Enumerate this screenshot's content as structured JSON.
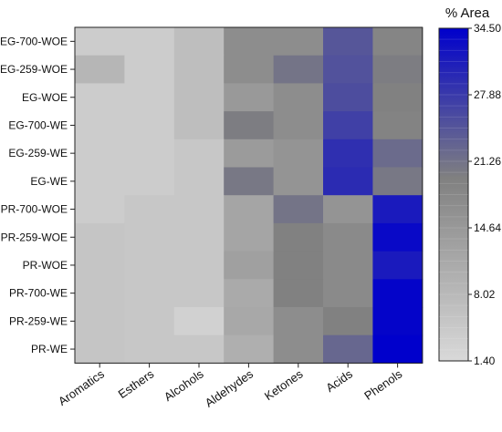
{
  "chart_data": {
    "type": "heatmap",
    "title": "",
    "xlabel": "",
    "ylabel": "",
    "rows": [
      "EG-700-WOE",
      "EG-259-WOE",
      "EG-WOE",
      "EG-700-WE",
      "EG-259-WE",
      "EG-WE",
      "PR-700-WOE",
      "PR-259-WOE",
      "PR-WOE",
      "PR-700-WE",
      "PR-259-WE",
      "PR-WE"
    ],
    "columns": [
      "Aromatics",
      "Esthers",
      "Alcohols",
      "Aldehydes",
      "Ketones",
      "Acids",
      "Phenols"
    ],
    "values": [
      [
        4.0,
        4.0,
        7.0,
        17.0,
        17.0,
        24.5,
        18.5
      ],
      [
        8.5,
        4.0,
        7.0,
        17.0,
        21.0,
        25.0,
        20.0
      ],
      [
        4.0,
        4.0,
        7.0,
        14.5,
        17.0,
        25.5,
        19.5
      ],
      [
        4.0,
        4.0,
        7.0,
        20.0,
        17.0,
        27.0,
        19.0
      ],
      [
        4.0,
        4.0,
        5.0,
        14.0,
        15.5,
        29.0,
        22.0
      ],
      [
        4.0,
        4.0,
        5.0,
        20.5,
        15.5,
        29.5,
        20.5
      ],
      [
        4.0,
        5.0,
        5.0,
        12.0,
        21.0,
        15.5,
        31.5
      ],
      [
        5.5,
        5.0,
        5.0,
        12.0,
        19.5,
        17.5,
        33.5
      ],
      [
        5.5,
        5.0,
        5.0,
        13.0,
        19.5,
        17.5,
        31.5
      ],
      [
        5.5,
        5.0,
        5.0,
        11.0,
        19.5,
        17.5,
        34.0
      ],
      [
        5.5,
        5.0,
        3.0,
        11.5,
        17.0,
        19.5,
        34.0
      ],
      [
        5.5,
        5.0,
        5.0,
        10.0,
        17.0,
        22.5,
        34.5
      ]
    ],
    "colorbar": {
      "label": "% Area",
      "min": 1.4,
      "max": 34.5,
      "ticks": [
        "34.50",
        "27.88",
        "21.26",
        "14.64",
        "8.02",
        "1.40"
      ],
      "color_low": "#d9d9d9",
      "color_mid": "#808080",
      "color_high": "#0000cc"
    }
  }
}
